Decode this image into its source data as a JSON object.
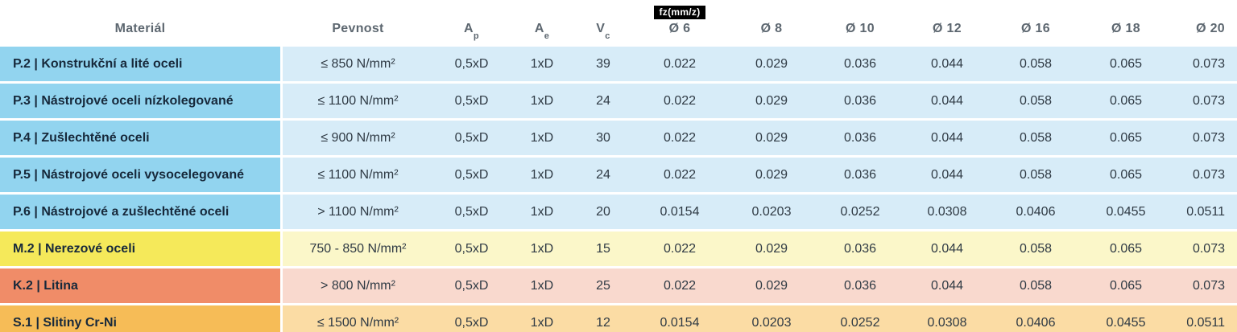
{
  "chart_data": {
    "type": "table",
    "headers": {
      "material": "Materiál",
      "pevnost": "Pevnost",
      "ap": {
        "main": "A",
        "sub": "p"
      },
      "ae": {
        "main": "A",
        "sub": "e"
      },
      "vc": {
        "main": "V",
        "sub": "c"
      },
      "fz_badge": "fz(mm/z)",
      "diameters": [
        "Ø 6",
        "Ø 8",
        "Ø 10",
        "Ø 12",
        "Ø 16",
        "Ø 18",
        "Ø 20"
      ]
    },
    "rows": [
      {
        "group": "P",
        "material": "P.2 | Konstrukční a lité oceli",
        "pevnost": "≤ 850 N/mm²",
        "ap": "0,5xD",
        "ae": "1xD",
        "vc": "39",
        "fz": [
          "0.022",
          "0.029",
          "0.036",
          "0.044",
          "0.058",
          "0.065",
          "0.073"
        ]
      },
      {
        "group": "P",
        "material": "P.3 | Nástrojové oceli nízkolegované",
        "pevnost": "≤ 1100 N/mm²",
        "ap": "0,5xD",
        "ae": "1xD",
        "vc": "24",
        "fz": [
          "0.022",
          "0.029",
          "0.036",
          "0.044",
          "0.058",
          "0.065",
          "0.073"
        ]
      },
      {
        "group": "P",
        "material": "P.4 | Zušlechtěné oceli",
        "pevnost": "≤ 900 N/mm²",
        "ap": "0,5xD",
        "ae": "1xD",
        "vc": "30",
        "fz": [
          "0.022",
          "0.029",
          "0.036",
          "0.044",
          "0.058",
          "0.065",
          "0.073"
        ]
      },
      {
        "group": "P",
        "material": "P.5 | Nástrojové oceli vysocelegované",
        "pevnost": "≤ 1100 N/mm²",
        "ap": "0,5xD",
        "ae": "1xD",
        "vc": "24",
        "fz": [
          "0.022",
          "0.029",
          "0.036",
          "0.044",
          "0.058",
          "0.065",
          "0.073"
        ]
      },
      {
        "group": "P",
        "material": "P.6 | Nástrojové a zušlechtěné oceli",
        "pevnost": "> 1100 N/mm²",
        "ap": "0,5xD",
        "ae": "1xD",
        "vc": "20",
        "fz": [
          "0.0154",
          "0.0203",
          "0.0252",
          "0.0308",
          "0.0406",
          "0.0455",
          "0.0511"
        ]
      },
      {
        "group": "M",
        "material": "M.2 | Nerezové oceli",
        "pevnost": "750 - 850 N/mm²",
        "ap": "0,5xD",
        "ae": "1xD",
        "vc": "15",
        "fz": [
          "0.022",
          "0.029",
          "0.036",
          "0.044",
          "0.058",
          "0.065",
          "0.073"
        ]
      },
      {
        "group": "K",
        "material": "K.2 | Litina",
        "pevnost": "> 800 N/mm²",
        "ap": "0,5xD",
        "ae": "1xD",
        "vc": "25",
        "fz": [
          "0.022",
          "0.029",
          "0.036",
          "0.044",
          "0.058",
          "0.065",
          "0.073"
        ]
      },
      {
        "group": "S",
        "material": "S.1 | Slitiny Cr-Ni",
        "pevnost": "≤ 1500 N/mm²",
        "ap": "0,5xD",
        "ae": "1xD",
        "vc": "12",
        "fz": [
          "0.0154",
          "0.0203",
          "0.0252",
          "0.0308",
          "0.0406",
          "0.0455",
          "0.0511"
        ]
      }
    ]
  },
  "colors": {
    "header_text": "#5d6770",
    "material_text": "#17293b",
    "value_text": "#2f3a44",
    "badge_bg": "#000000",
    "badge_text": "#ffffff",
    "groups": {
      "P": {
        "dark": "#92d4ef",
        "light": "#d7ecf8"
      },
      "M": {
        "dark": "#f5e95a",
        "light": "#fbf7c9"
      },
      "K": {
        "dark": "#f08c68",
        "light": "#f9d9ce"
      },
      "S": {
        "dark": "#f6bc57",
        "light": "#fbdca4"
      }
    }
  }
}
